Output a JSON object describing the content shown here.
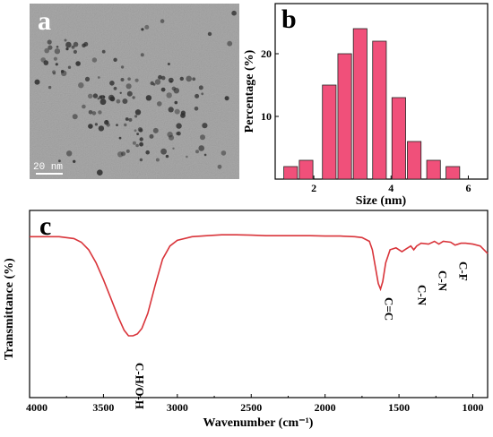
{
  "colors": {
    "bar_fill": "#f0507a",
    "bar_stroke": "#222222",
    "ftir_line": "#d9343a",
    "tem_background": "#a9a9a9",
    "tem_particles": "#2e2e2e"
  },
  "panel_a": {
    "letter": "a",
    "image_description_icon": "tem-micrograph-image",
    "scale_bar_label": "20 nm"
  },
  "panel_b": {
    "letter": "b"
  },
  "panel_c": {
    "letter": "c"
  },
  "chart_data": [
    {
      "type": "bar",
      "panel": "b",
      "xlabel": "Size (nm)",
      "ylabel": "Percentage (%)",
      "x": [
        1.2,
        1.6,
        2.0,
        2.4,
        2.8,
        3.2,
        3.6,
        4.0,
        4.4,
        4.8,
        5.2,
        5.6
      ],
      "values": [
        2,
        3,
        15,
        20,
        24,
        22,
        13,
        6,
        3,
        2,
        0,
        0
      ],
      "bins": [
        {
          "x": 1.4,
          "value": 2
        },
        {
          "x": 1.8,
          "value": 3
        },
        {
          "x": 2.4,
          "value": 15
        },
        {
          "x": 2.8,
          "value": 20
        },
        {
          "x": 3.2,
          "value": 24
        },
        {
          "x": 3.7,
          "value": 22
        },
        {
          "x": 4.2,
          "value": 13
        },
        {
          "x": 4.6,
          "value": 6
        },
        {
          "x": 5.1,
          "value": 3
        },
        {
          "x": 5.6,
          "value": 2
        }
      ],
      "bar_width": 0.4,
      "xlim": [
        1.0,
        6.5
      ],
      "ylim": [
        0,
        28
      ],
      "xticks": [
        2,
        4,
        6
      ],
      "xtick_labels": [
        "2",
        "4",
        "6"
      ],
      "yticks": [
        0,
        10,
        20
      ],
      "yticks_labeled": [
        10,
        20
      ],
      "ytick_labels": [
        "10",
        "20"
      ],
      "grid": false
    },
    {
      "type": "line",
      "panel": "c",
      "xlabel": "Wavenumber (cm⁻¹)",
      "ylabel": "Transmittance (%)",
      "xlim": [
        4000,
        900
      ],
      "x_reversed": true,
      "ylim": [
        0,
        100
      ],
      "xticks": [
        4000,
        3500,
        3000,
        2500,
        2000,
        1500,
        1000
      ],
      "xtick_labels": [
        "4000",
        "3500",
        "3000",
        "2500",
        "2000",
        "1500",
        "1000"
      ],
      "yticks": [],
      "grid": false,
      "x": [
        4000,
        3900,
        3800,
        3700,
        3650,
        3600,
        3550,
        3500,
        3450,
        3400,
        3360,
        3330,
        3300,
        3270,
        3240,
        3200,
        3150,
        3100,
        3050,
        3000,
        2900,
        2800,
        2700,
        2600,
        2500,
        2400,
        2300,
        2200,
        2100,
        2000,
        1900,
        1800,
        1750,
        1700,
        1680,
        1660,
        1640,
        1625,
        1610,
        1590,
        1560,
        1520,
        1480,
        1450,
        1420,
        1400,
        1380,
        1350,
        1300,
        1260,
        1230,
        1200,
        1150,
        1120,
        1080,
        1050,
        1000,
        950,
        900
      ],
      "values": [
        86,
        86,
        86,
        85,
        83,
        79,
        72,
        63,
        53,
        43,
        36,
        33,
        33,
        34,
        37,
        45,
        60,
        74,
        81,
        84,
        86,
        86.5,
        87,
        87,
        86.8,
        86.5,
        86.5,
        86.5,
        86.5,
        86.3,
        86.3,
        86.0,
        85.5,
        83.5,
        79,
        70,
        61,
        58,
        62,
        72,
        79,
        80,
        78,
        79.5,
        81,
        79,
        81,
        82.5,
        82,
        83.5,
        82,
        83.5,
        83,
        81.5,
        82.5,
        82.5,
        82,
        81,
        77
      ],
      "annotations": [
        {
          "text": "C-H/O-H",
          "x": 3310,
          "rotation": -90
        },
        {
          "text": "C=C",
          "x": 1625,
          "rotation": -90
        },
        {
          "text": "C-N",
          "x": 1400,
          "rotation": -90
        },
        {
          "text": "C-N",
          "x": 1260,
          "rotation": -90
        },
        {
          "text": "C-F",
          "x": 1120,
          "rotation": -90
        }
      ]
    }
  ]
}
